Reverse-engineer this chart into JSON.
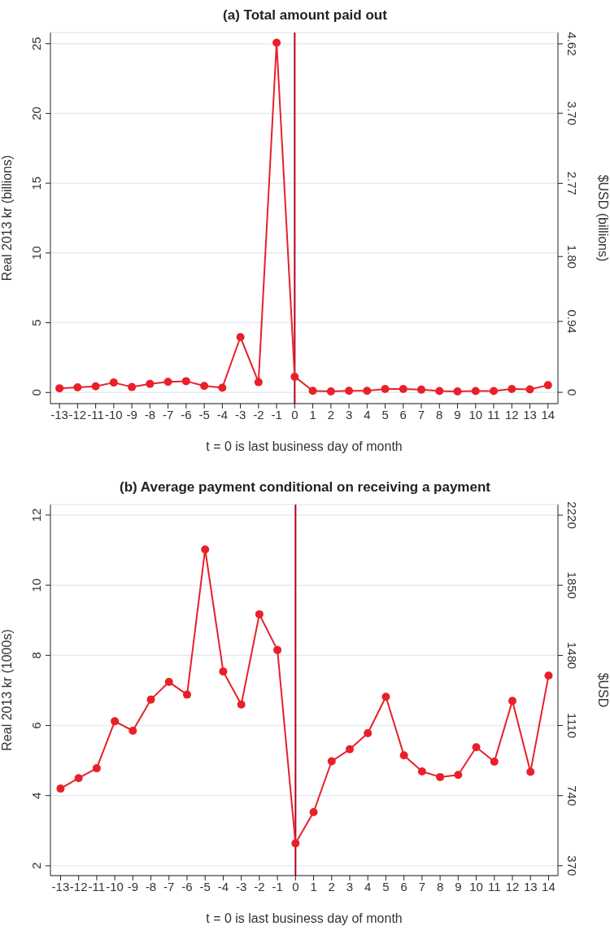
{
  "chart_data": [
    {
      "type": "line",
      "title": "(a) Total amount paid out",
      "xlabel": "t = 0 is last business day of month",
      "ylabel": "Real 2013 kr (billions)",
      "y2label": "$USD (billions)",
      "x": [
        -13,
        -12,
        -11,
        -10,
        -9,
        -8,
        -7,
        -6,
        -5,
        -4,
        -3,
        -2,
        -1,
        0,
        1,
        2,
        3,
        4,
        5,
        6,
        7,
        8,
        9,
        10,
        11,
        12,
        13,
        14
      ],
      "series": [
        {
          "color": "#e8202a",
          "values": [
            0.3,
            0.37,
            0.44,
            0.71,
            0.39,
            0.62,
            0.76,
            0.81,
            0.47,
            0.34,
            3.97,
            0.74,
            25.07,
            1.13,
            0.12,
            0.07,
            0.12,
            0.12,
            0.25,
            0.25,
            0.2,
            0.1,
            0.07,
            0.1,
            0.1,
            0.25,
            0.22,
            0.52
          ]
        }
      ],
      "xlim": [
        -13.5,
        14.55
      ],
      "xticks": [
        -13,
        -12,
        -11,
        -10,
        -9,
        -8,
        -7,
        -6,
        -5,
        -4,
        -3,
        -2,
        -1,
        0,
        1,
        2,
        3,
        4,
        5,
        6,
        7,
        8,
        9,
        10,
        11,
        12,
        13,
        14
      ],
      "ylim": [
        -0.8,
        25.8
      ],
      "yticks": [
        0,
        5,
        10,
        15,
        20,
        25
      ],
      "y2lim": [
        -0.15,
        4.77
      ],
      "y2ticks": [
        0,
        0.94,
        {
          "value": 1.8,
          "label": "1.80"
        },
        2.77,
        {
          "value": 3.7,
          "label": "3.70"
        },
        4.62
      ],
      "ref_lines": [
        {
          "axis": "x",
          "value": 0,
          "color": "#b5001f"
        }
      ],
      "grid": "y",
      "legend": false,
      "marker": "circle",
      "line_style": "solid"
    },
    {
      "type": "line",
      "title": "(b) Average payment conditional on receiving a payment",
      "xlabel": "t = 0 is last business day of month",
      "ylabel": "Real 2013 kr (1000s)",
      "y2label": "$USD",
      "x": [
        -13,
        -12,
        -11,
        -10,
        -9,
        -8,
        -7,
        -6,
        -5,
        -4,
        -3,
        -2,
        -1,
        0,
        1,
        2,
        3,
        4,
        5,
        6,
        7,
        8,
        9,
        10,
        11,
        12,
        13,
        14
      ],
      "series": [
        {
          "color": "#e8202a",
          "values": [
            4.2,
            4.5,
            4.78,
            6.12,
            5.85,
            6.74,
            7.24,
            6.88,
            11.02,
            7.54,
            6.6,
            9.17,
            8.15,
            2.64,
            3.53,
            4.98,
            5.32,
            5.78,
            6.82,
            5.15,
            4.69,
            4.53,
            4.59,
            5.38,
            4.97,
            6.7,
            4.68,
            7.42
          ]
        }
      ],
      "xlim": [
        -13.56,
        14.52
      ],
      "xticks": [
        -13,
        -12,
        -11,
        -10,
        -9,
        -8,
        -7,
        -6,
        -5,
        -4,
        -3,
        -2,
        -1,
        0,
        1,
        2,
        3,
        4,
        5,
        6,
        7,
        8,
        9,
        10,
        11,
        12,
        13,
        14
      ],
      "ylim": [
        1.72,
        12.3
      ],
      "yticks": [
        2,
        4,
        6,
        8,
        10,
        12
      ],
      "y2lim": [
        318,
        2276
      ],
      "y2ticks": [
        370,
        740,
        1110,
        1480,
        1850,
        2220
      ],
      "ref_lines": [
        {
          "axis": "x",
          "value": 0,
          "color": "#b5001f"
        }
      ],
      "grid": "y",
      "legend": false,
      "marker": "circle",
      "line_style": "solid"
    }
  ]
}
